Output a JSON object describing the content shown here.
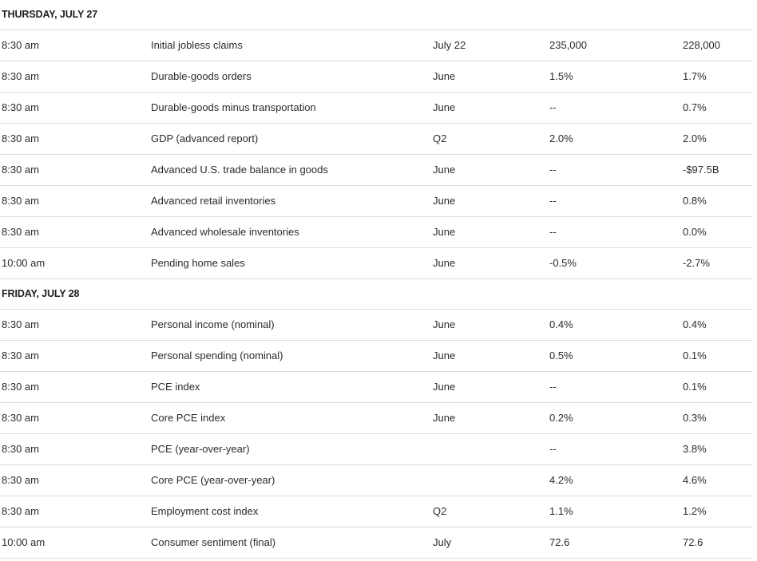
{
  "sections": [
    {
      "title": "THURSDAY, JULY 27",
      "rows": [
        {
          "time": "8:30 am",
          "report": "Initial jobless claims",
          "period": "July 22",
          "forecast": "235,000",
          "previous": "228,000"
        },
        {
          "time": "8:30 am",
          "report": "Durable-goods orders",
          "period": "June",
          "forecast": "1.5%",
          "previous": "1.7%"
        },
        {
          "time": "8:30 am",
          "report": "Durable-goods minus transportation",
          "period": "June",
          "forecast": "--",
          "previous": "0.7%"
        },
        {
          "time": "8:30 am",
          "report": "GDP (advanced report)",
          "period": "Q2",
          "forecast": "2.0%",
          "previous": "2.0%"
        },
        {
          "time": "8:30 am",
          "report": "Advanced U.S. trade balance in goods",
          "period": "June",
          "forecast": "--",
          "previous": "-$97.5B"
        },
        {
          "time": "8:30 am",
          "report": "Advanced retail inventories",
          "period": "June",
          "forecast": "--",
          "previous": "0.8%"
        },
        {
          "time": "8:30 am",
          "report": "Advanced wholesale inventories",
          "period": "June",
          "forecast": "--",
          "previous": "0.0%"
        },
        {
          "time": "10:00 am",
          "report": "Pending home sales",
          "period": "June",
          "forecast": "-0.5%",
          "previous": "-2.7%"
        }
      ]
    },
    {
      "title": "FRIDAY, JULY 28",
      "rows": [
        {
          "time": "8:30 am",
          "report": "Personal income (nominal)",
          "period": "June",
          "forecast": "0.4%",
          "previous": "0.4%"
        },
        {
          "time": "8:30 am",
          "report": "Personal spending (nominal)",
          "period": "June",
          "forecast": "0.5%",
          "previous": "0.1%"
        },
        {
          "time": "8:30 am",
          "report": "PCE index",
          "period": "June",
          "forecast": "--",
          "previous": "0.1%"
        },
        {
          "time": "8:30 am",
          "report": "Core PCE index",
          "period": "June",
          "forecast": "0.2%",
          "previous": "0.3%"
        },
        {
          "time": "8:30 am",
          "report": "PCE (year-over-year)",
          "period": "",
          "forecast": "--",
          "previous": "3.8%"
        },
        {
          "time": "8:30 am",
          "report": "Core PCE (year-over-year)",
          "period": "",
          "forecast": "4.2%",
          "previous": "4.6%"
        },
        {
          "time": "8:30 am",
          "report": "Employment cost index",
          "period": "Q2",
          "forecast": "1.1%",
          "previous": "1.2%"
        },
        {
          "time": "10:00 am",
          "report": "Consumer sentiment (final)",
          "period": "July",
          "forecast": "72.6",
          "previous": "72.6"
        }
      ]
    }
  ]
}
